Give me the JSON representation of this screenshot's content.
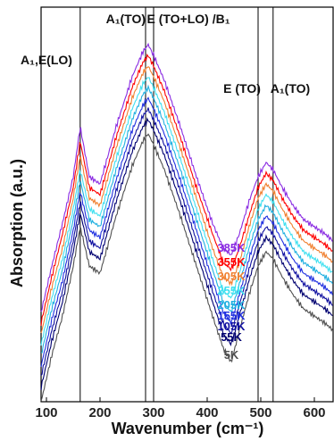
{
  "chart_data": {
    "type": "line",
    "title": "",
    "xlabel": "Wavenumber (cm⁻¹)",
    "ylabel": "Absorption (a.u.)",
    "xlim": [
      90,
      635
    ],
    "xticks": [
      100,
      200,
      300,
      400,
      500,
      600
    ],
    "xtick_labels": [
      "100",
      "200",
      "300",
      "400",
      "500",
      "600"
    ],
    "grid": false,
    "legend": "none",
    "x": [
      90,
      110,
      130,
      150,
      163,
      180,
      200,
      230,
      260,
      280,
      290,
      300,
      320,
      350,
      380,
      410,
      430,
      445,
      460,
      480,
      495,
      510,
      523,
      540,
      560,
      580,
      600,
      620,
      635
    ],
    "series": [
      {
        "name": "385K",
        "color": "#8a2be2",
        "values": [
          0.2,
          0.33,
          0.45,
          0.58,
          0.72,
          0.58,
          0.56,
          0.72,
          0.86,
          0.93,
          0.95,
          0.92,
          0.85,
          0.72,
          0.58,
          0.45,
          0.38,
          0.36,
          0.42,
          0.52,
          0.58,
          0.62,
          0.6,
          0.55,
          0.5,
          0.46,
          0.44,
          0.42,
          0.4
        ]
      },
      {
        "name": "355K",
        "color": "#ff0000",
        "values": [
          0.17,
          0.3,
          0.42,
          0.55,
          0.68,
          0.55,
          0.53,
          0.69,
          0.83,
          0.9,
          0.92,
          0.89,
          0.82,
          0.69,
          0.55,
          0.42,
          0.34,
          0.32,
          0.38,
          0.48,
          0.55,
          0.59,
          0.57,
          0.52,
          0.47,
          0.43,
          0.41,
          0.39,
          0.37
        ]
      },
      {
        "name": "305K",
        "color": "#f08030",
        "values": [
          0.14,
          0.27,
          0.38,
          0.52,
          0.64,
          0.52,
          0.5,
          0.66,
          0.8,
          0.87,
          0.89,
          0.86,
          0.79,
          0.66,
          0.52,
          0.38,
          0.3,
          0.28,
          0.34,
          0.45,
          0.52,
          0.56,
          0.54,
          0.49,
          0.44,
          0.4,
          0.38,
          0.36,
          0.34
        ]
      },
      {
        "name": "255K",
        "color": "#40e0f0",
        "values": [
          0.11,
          0.24,
          0.35,
          0.49,
          0.6,
          0.49,
          0.47,
          0.63,
          0.77,
          0.84,
          0.86,
          0.83,
          0.76,
          0.63,
          0.49,
          0.35,
          0.26,
          0.24,
          0.31,
          0.42,
          0.49,
          0.53,
          0.51,
          0.46,
          0.41,
          0.37,
          0.35,
          0.33,
          0.31
        ]
      },
      {
        "name": "205K",
        "color": "#20b0e0",
        "values": [
          0.08,
          0.21,
          0.32,
          0.46,
          0.57,
          0.46,
          0.44,
          0.6,
          0.74,
          0.81,
          0.83,
          0.8,
          0.73,
          0.6,
          0.46,
          0.32,
          0.23,
          0.2,
          0.28,
          0.39,
          0.46,
          0.5,
          0.48,
          0.43,
          0.38,
          0.34,
          0.32,
          0.3,
          0.28
        ]
      },
      {
        "name": "155K",
        "color": "#2030e0",
        "values": [
          0.05,
          0.18,
          0.29,
          0.43,
          0.54,
          0.43,
          0.41,
          0.57,
          0.71,
          0.78,
          0.8,
          0.77,
          0.7,
          0.57,
          0.43,
          0.29,
          0.2,
          0.17,
          0.25,
          0.36,
          0.43,
          0.47,
          0.45,
          0.4,
          0.35,
          0.31,
          0.29,
          0.27,
          0.25
        ]
      },
      {
        "name": "105K",
        "color": "#1010a0",
        "values": [
          0.02,
          0.15,
          0.26,
          0.4,
          0.51,
          0.4,
          0.38,
          0.54,
          0.68,
          0.75,
          0.77,
          0.74,
          0.67,
          0.54,
          0.4,
          0.26,
          0.17,
          0.14,
          0.22,
          0.33,
          0.4,
          0.44,
          0.42,
          0.37,
          0.32,
          0.28,
          0.26,
          0.24,
          0.22
        ]
      },
      {
        "name": "55K",
        "color": "#000070",
        "values": [
          -0.01,
          0.12,
          0.23,
          0.37,
          0.48,
          0.37,
          0.35,
          0.51,
          0.65,
          0.72,
          0.74,
          0.71,
          0.64,
          0.51,
          0.37,
          0.23,
          0.14,
          0.11,
          0.19,
          0.3,
          0.37,
          0.41,
          0.39,
          0.34,
          0.29,
          0.25,
          0.23,
          0.21,
          0.19
        ]
      },
      {
        "name": "5K",
        "color": "#505050",
        "values": [
          -0.05,
          0.08,
          0.19,
          0.33,
          0.44,
          0.33,
          0.31,
          0.47,
          0.61,
          0.68,
          0.7,
          0.67,
          0.6,
          0.47,
          0.33,
          0.19,
          0.1,
          0.06,
          0.15,
          0.26,
          0.33,
          0.37,
          0.35,
          0.3,
          0.25,
          0.21,
          0.19,
          0.17,
          0.15
        ]
      }
    ],
    "vertical_lines": [
      163,
      285,
      300,
      495,
      523
    ],
    "annotations": [
      {
        "text": "A₁,E(LO)",
        "x": 100
      },
      {
        "text": "A₁(TO)",
        "x": 248
      },
      {
        "text": "E (TO+LO) /B₁",
        "x": 365
      },
      {
        "text": "E (TO)",
        "x": 465
      },
      {
        "text": "A₁(TO)",
        "x": 555
      }
    ]
  }
}
